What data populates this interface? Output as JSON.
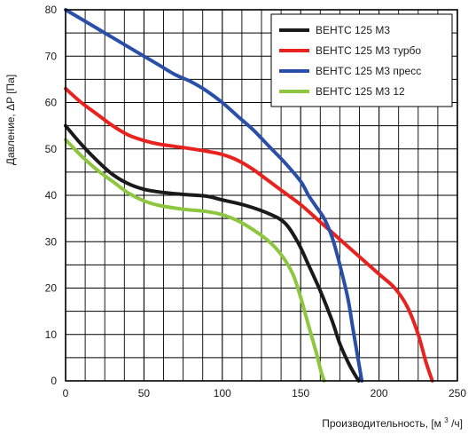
{
  "chart_data": {
    "type": "line",
    "title": "",
    "xlabel": "Производительность, [м",
    "xlabel_sup": "3",
    "xlabel_tail": "/ч]",
    "ylabel": "Давление, ΔP [Па]",
    "xlim": [
      0,
      250
    ],
    "ylim": [
      0,
      80
    ],
    "x_ticks": [
      0,
      50,
      100,
      150,
      200,
      250
    ],
    "y_ticks": [
      0,
      10,
      20,
      30,
      40,
      50,
      60,
      70,
      80
    ],
    "x_minor_step": 12.5,
    "y_minor_step": 5,
    "grid": true,
    "legend_position": "top-right",
    "series": [
      {
        "name": "ВЕНТС 125 М3",
        "color": "#1a1a1a",
        "points": [
          [
            0,
            55
          ],
          [
            10,
            51
          ],
          [
            20,
            47.5
          ],
          [
            30,
            44.5
          ],
          [
            40,
            42.5
          ],
          [
            50,
            41.3
          ],
          [
            60,
            40.7
          ],
          [
            75,
            40.2
          ],
          [
            90,
            39.8
          ],
          [
            100,
            39
          ],
          [
            115,
            37.8
          ],
          [
            130,
            36
          ],
          [
            140,
            34
          ],
          [
            148,
            30
          ],
          [
            155,
            25
          ],
          [
            163,
            19
          ],
          [
            170,
            13
          ],
          [
            175,
            8
          ],
          [
            181,
            3.5
          ],
          [
            187,
            0
          ]
        ]
      },
      {
        "name": "ВЕНТС 125 М3 турбо",
        "color": "#e8231f",
        "points": [
          [
            0,
            63
          ],
          [
            10,
            60
          ],
          [
            20,
            57.5
          ],
          [
            30,
            55
          ],
          [
            40,
            53
          ],
          [
            50,
            51.8
          ],
          [
            60,
            51
          ],
          [
            75,
            50.3
          ],
          [
            90,
            49.5
          ],
          [
            100,
            48.8
          ],
          [
            110,
            47.5
          ],
          [
            120,
            45.5
          ],
          [
            130,
            43
          ],
          [
            140,
            40.5
          ],
          [
            150,
            38
          ],
          [
            160,
            35
          ],
          [
            170,
            32
          ],
          [
            180,
            29
          ],
          [
            190,
            26
          ],
          [
            200,
            23
          ],
          [
            210,
            20
          ],
          [
            218,
            16
          ],
          [
            225,
            10
          ],
          [
            230,
            4
          ],
          [
            234,
            0
          ]
        ]
      },
      {
        "name": "ВЕНТС 125 М3 пресс",
        "color": "#2a4fa8",
        "points": [
          [
            0,
            80
          ],
          [
            10,
            78
          ],
          [
            20,
            76
          ],
          [
            30,
            74
          ],
          [
            40,
            72
          ],
          [
            50,
            70
          ],
          [
            60,
            68
          ],
          [
            70,
            66
          ],
          [
            80,
            64.5
          ],
          [
            90,
            62.5
          ],
          [
            100,
            60
          ],
          [
            110,
            57
          ],
          [
            120,
            54
          ],
          [
            130,
            50.5
          ],
          [
            140,
            47
          ],
          [
            150,
            43
          ],
          [
            155,
            40
          ],
          [
            160,
            37.5
          ],
          [
            165,
            35
          ],
          [
            170,
            31
          ],
          [
            175,
            25
          ],
          [
            180,
            18
          ],
          [
            183,
            12
          ],
          [
            186,
            6
          ],
          [
            189,
            0
          ]
        ]
      },
      {
        "name": "ВЕНТС 125 М3  12",
        "color": "#8dc63f",
        "points": [
          [
            0,
            52
          ],
          [
            10,
            48.5
          ],
          [
            20,
            45.5
          ],
          [
            30,
            43
          ],
          [
            40,
            40.5
          ],
          [
            50,
            38.8
          ],
          [
            60,
            37.8
          ],
          [
            75,
            37
          ],
          [
            90,
            36.5
          ],
          [
            100,
            35.8
          ],
          [
            110,
            34.5
          ],
          [
            120,
            32.5
          ],
          [
            130,
            30
          ],
          [
            138,
            27
          ],
          [
            145,
            23
          ],
          [
            150,
            18
          ],
          [
            155,
            12
          ],
          [
            160,
            6
          ],
          [
            163,
            2
          ],
          [
            165,
            0
          ]
        ]
      }
    ]
  }
}
